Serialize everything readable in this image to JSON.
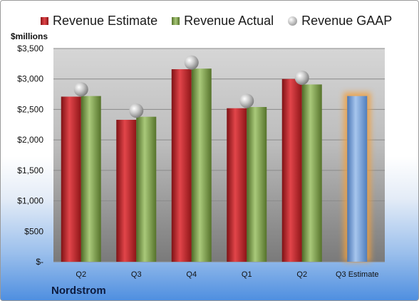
{
  "chart_data": {
    "type": "bar",
    "title": "",
    "ylabel": "$millions",
    "xlabel": "",
    "company": "Nordstrom",
    "categories": [
      "Q2",
      "Q3",
      "Q4",
      "Q1",
      "Q2",
      "Q3 Estimate"
    ],
    "ylim": [
      0,
      3500
    ],
    "yticks": [
      {
        "value": 0,
        "label": "$-"
      },
      {
        "value": 500,
        "label": "$500"
      },
      {
        "value": 1000,
        "label": "$1,000"
      },
      {
        "value": 1500,
        "label": "$1,500"
      },
      {
        "value": 2000,
        "label": "$2,000"
      },
      {
        "value": 2500,
        "label": "$2,500"
      },
      {
        "value": 3000,
        "label": "$3,000"
      },
      {
        "value": 3500,
        "label": "$3,500"
      }
    ],
    "grid": true,
    "legend_position": "top",
    "series": [
      {
        "name": "Revenue Estimate",
        "kind": "bar",
        "color": "#c0282d",
        "values": [
          2710,
          2330,
          3160,
          2520,
          3000,
          null
        ]
      },
      {
        "name": "Revenue Actual",
        "kind": "bar",
        "color": "#7fa04a",
        "values": [
          2720,
          2380,
          3170,
          2540,
          2910,
          null
        ]
      },
      {
        "name": "Revenue GAAP",
        "kind": "marker",
        "color": "#b8b8b8",
        "values": [
          2830,
          2480,
          3270,
          2640,
          3020,
          null
        ]
      }
    ],
    "estimate_bar": {
      "category": "Q3 Estimate",
      "value": 2720,
      "color": "#6f9bd4",
      "glow_color": "#f0a040"
    }
  }
}
